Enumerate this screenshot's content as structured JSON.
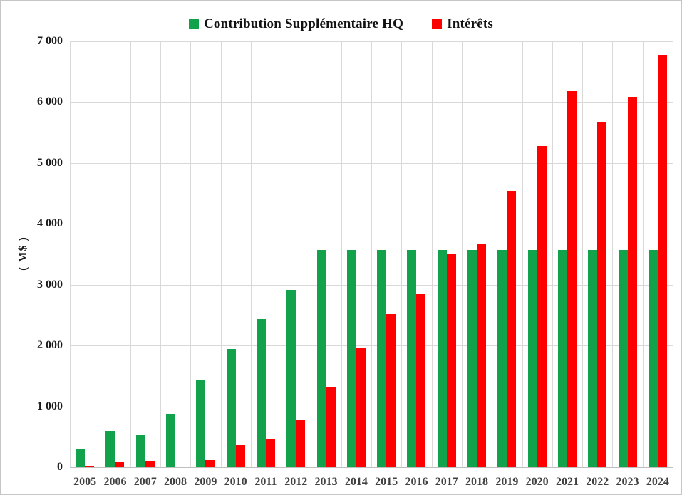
{
  "chart_data": {
    "type": "bar",
    "title": "",
    "ylabel": "( M$ )",
    "categories": [
      "2005",
      "2006",
      "2007",
      "2008",
      "2009",
      "2010",
      "2011",
      "2012",
      "2013",
      "2014",
      "2015",
      "2016",
      "2017",
      "2018",
      "2019",
      "2020",
      "2021",
      "2022",
      "2023",
      "2024"
    ],
    "series": [
      {
        "name": "Contribution Supplémentaire HQ",
        "color": "#12a24b",
        "values": [
          290,
          600,
          530,
          880,
          1440,
          1940,
          2430,
          2920,
          3570,
          3570,
          3570,
          3570,
          3570,
          3570,
          3570,
          3570,
          3570,
          3570,
          3570,
          3570
        ]
      },
      {
        "name": "Intérêts",
        "color": "#fe0000",
        "values": [
          20,
          95,
          110,
          10,
          120,
          365,
          460,
          775,
          1310,
          1970,
          2520,
          2840,
          3500,
          3660,
          4540,
          5280,
          6180,
          5680,
          6090,
          6780
        ]
      }
    ],
    "ylim": [
      0,
      7000
    ],
    "ytick_step": 1000,
    "ytick_labels": [
      "0",
      "1 000",
      "2 000",
      "3 000",
      "4 000",
      "5 000",
      "6 000",
      "7 000"
    ],
    "grid": true,
    "legend_position": "top"
  }
}
